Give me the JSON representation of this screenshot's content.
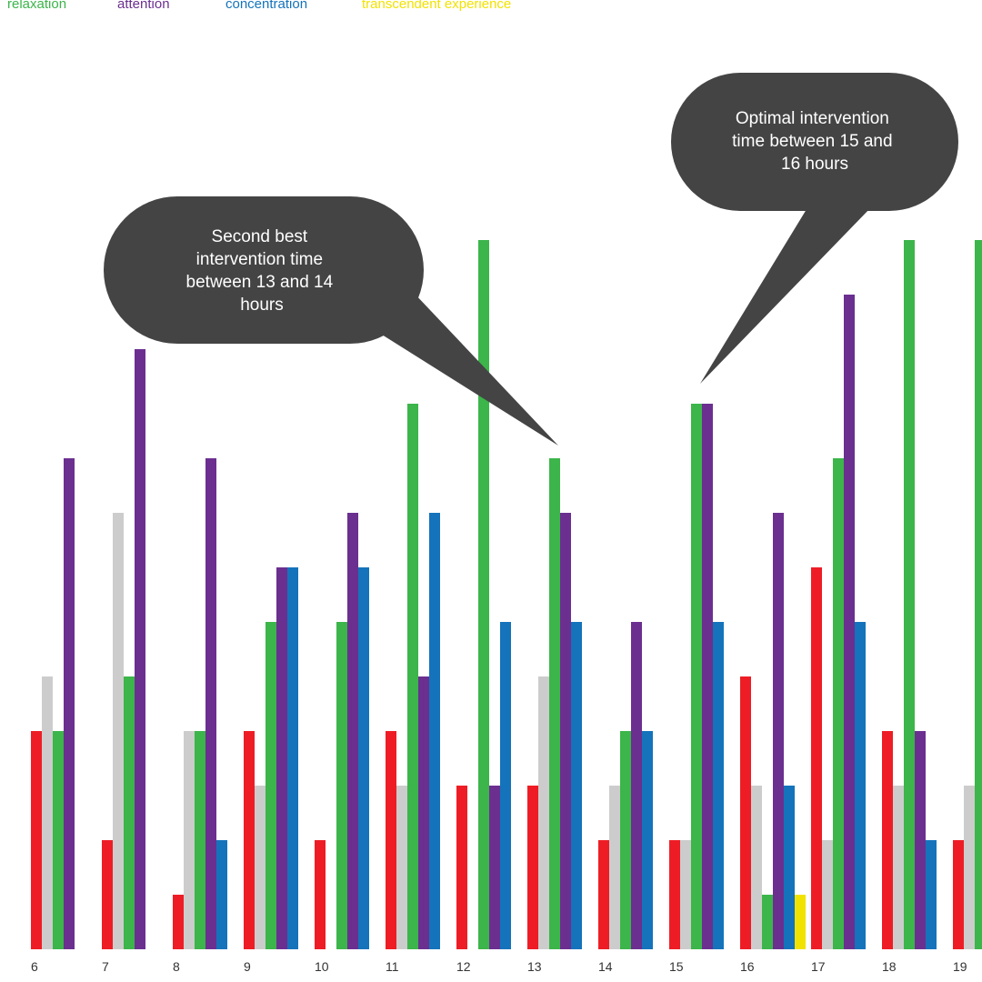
{
  "legend": [
    {
      "label": "relaxation",
      "color": "#3cb54a"
    },
    {
      "label": "attention",
      "color": "#6b2f90"
    },
    {
      "label": "concentration",
      "color": "#1473bb"
    },
    {
      "label": "transcendent experience",
      "color": "#f2e200"
    }
  ],
  "callouts": [
    {
      "lines": [
        "Second best",
        "intervention time",
        "between 13 and 14",
        "hours"
      ]
    },
    {
      "lines": [
        "Optimal intervention",
        "time between 15 and",
        "16 hours"
      ]
    }
  ],
  "chart_data": {
    "type": "bar",
    "title": "",
    "xlabel": "",
    "ylabel": "",
    "categories": [
      "6",
      "7",
      "8",
      "9",
      "10",
      "11",
      "12",
      "13",
      "14",
      "15",
      "16",
      "17",
      "18",
      "19"
    ],
    "ylim": [
      0,
      14
    ],
    "grid": false,
    "legend_position": "top-left",
    "series": [
      {
        "color": "#ee1d25",
        "values": [
          4,
          2,
          1,
          4,
          2,
          4,
          3,
          3,
          2,
          2,
          5,
          7,
          4,
          2
        ]
      },
      {
        "color": "#cccccc",
        "values": [
          5,
          8,
          4,
          3,
          0,
          3,
          0,
          5,
          3,
          2,
          3,
          2,
          3,
          3
        ]
      },
      {
        "name": "relaxation",
        "color": "#3cb54a",
        "values": [
          4,
          5,
          4,
          6,
          6,
          10,
          13,
          9,
          4,
          10,
          1,
          9,
          13,
          13
        ]
      },
      {
        "name": "attention",
        "color": "#6b2f90",
        "values": [
          9,
          11,
          9,
          7,
          8,
          5,
          3,
          8,
          6,
          10,
          8,
          12,
          4,
          0
        ]
      },
      {
        "name": "concentration",
        "color": "#1473bb",
        "values": [
          0,
          0,
          2,
          7,
          7,
          8,
          6,
          6,
          4,
          6,
          3,
          6,
          2,
          0
        ]
      },
      {
        "name": "transcendent experience",
        "color": "#f2e200",
        "values": [
          0,
          0,
          0,
          0,
          0,
          0,
          0,
          0,
          0,
          0,
          1,
          0,
          0,
          0
        ]
      }
    ]
  }
}
